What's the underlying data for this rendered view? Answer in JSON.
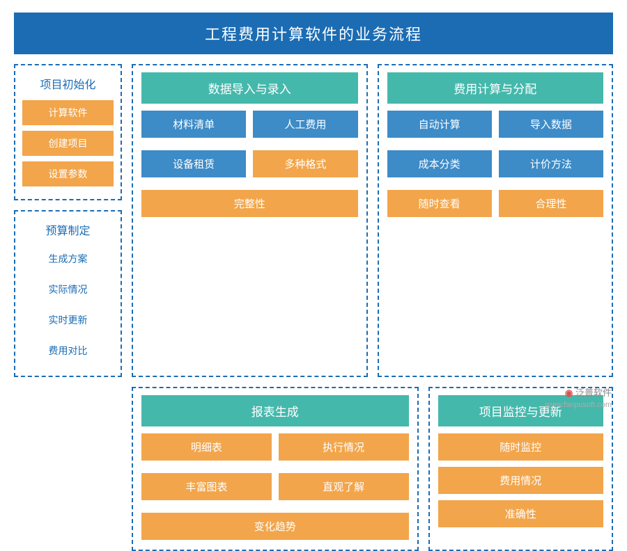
{
  "title": "工程费用计算软件的业务流程",
  "colors": {
    "primary_blue": "#1b6cb3",
    "box_blue": "#3d8bc7",
    "box_orange": "#f2a54a",
    "box_teal": "#45b8ac",
    "border_dash": "#1b6cb3",
    "text_white": "#ffffff"
  },
  "panels": {
    "init": {
      "header": "项目初始化",
      "items": [
        {
          "label": "计算软件",
          "style": "orange"
        },
        {
          "label": "创建项目",
          "style": "orange"
        },
        {
          "label": "设置参数",
          "style": "orange"
        }
      ]
    },
    "budget": {
      "header": "预算制定",
      "items": [
        {
          "label": "生成方案",
          "style": "white"
        },
        {
          "label": "实际情况",
          "style": "white"
        },
        {
          "label": "实时更新",
          "style": "white"
        },
        {
          "label": "费用对比",
          "style": "white"
        }
      ]
    },
    "import": {
      "header": "数据导入与录入",
      "row1": [
        {
          "label": "材料清单",
          "style": "blue"
        },
        {
          "label": "人工费用",
          "style": "blue"
        }
      ],
      "row2": [
        {
          "label": "设备租赁",
          "style": "blue"
        },
        {
          "label": "多种格式",
          "style": "orange"
        }
      ],
      "full": {
        "label": "完整性",
        "style": "orange"
      }
    },
    "calc": {
      "header": "费用计算与分配",
      "row1": [
        {
          "label": "自动计算",
          "style": "blue"
        },
        {
          "label": "导入数据",
          "style": "blue"
        }
      ],
      "row2": [
        {
          "label": "成本分类",
          "style": "blue"
        },
        {
          "label": "计价方法",
          "style": "blue"
        }
      ],
      "row3": [
        {
          "label": "随时查看",
          "style": "orange"
        },
        {
          "label": "合理性",
          "style": "orange"
        }
      ]
    },
    "report": {
      "header": "报表生成",
      "row1": [
        {
          "label": "明细表",
          "style": "orange"
        },
        {
          "label": "执行情况",
          "style": "orange"
        }
      ],
      "row2": [
        {
          "label": "丰富图表",
          "style": "orange"
        },
        {
          "label": "直观了解",
          "style": "orange"
        }
      ],
      "full": {
        "label": "变化趋势",
        "style": "orange"
      }
    },
    "monitor": {
      "header": "项目监控与更新",
      "items": [
        {
          "label": "随时监控",
          "style": "orange"
        },
        {
          "label": "费用情况",
          "style": "orange"
        },
        {
          "label": "准确性",
          "style": "orange"
        }
      ]
    }
  },
  "watermark": {
    "brand": "泛普软件",
    "url": "www.fanpusoft.com"
  }
}
